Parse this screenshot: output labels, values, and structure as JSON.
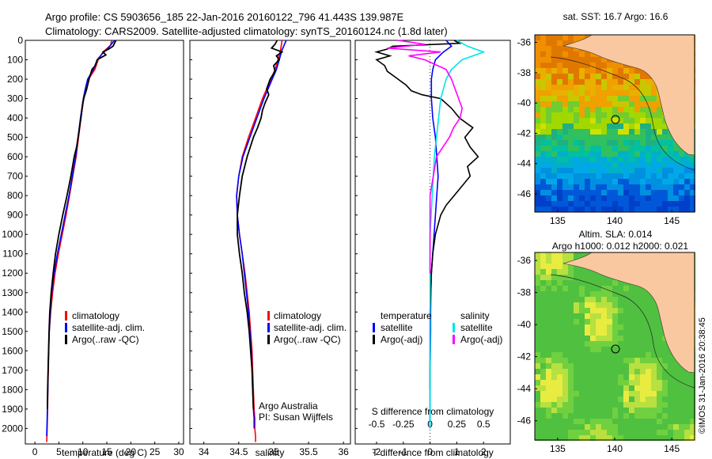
{
  "header": {
    "line1": "Argo profile: CS 5903656_185 22-Jan-2016 20160122_796 41.443S 139.987E",
    "line2": "Climatology: CARS2009. Satellite-adjusted climatology: synTS_20160124.nc (1.8d later)"
  },
  "colors": {
    "climatology": "#ff0000",
    "satellite": "#0000ff",
    "argo": "#000000",
    "sat_salinity": "#00e5e5",
    "argo_salinity": "#ff00ff"
  },
  "chart_data": [
    {
      "type": "line",
      "id": "temperature",
      "xlabel": "temperature (deg C)",
      "ylabel": "",
      "xlim": [
        -2,
        31
      ],
      "ylim": [
        2080,
        0
      ],
      "xticks": [
        "0",
        "5",
        "10",
        "15",
        "20",
        "25",
        "30"
      ],
      "yticks": [
        "0",
        "100",
        "200",
        "300",
        "400",
        "500",
        "600",
        "700",
        "800",
        "900",
        "1000",
        "1100",
        "1200",
        "1300",
        "1400",
        "1500",
        "1600",
        "1700",
        "1800",
        "1900",
        "2000"
      ],
      "legend": {
        "position": "lower-right",
        "items": [
          "climatology",
          "satellite-adj. clim.",
          "Argo(..raw -QC)"
        ]
      },
      "series": [
        {
          "name": "climatology",
          "x": [
            16.0,
            15.8,
            14.2,
            13.2,
            12.5,
            11.2,
            10.6,
            10.2,
            9.6,
            9.1,
            8.6,
            7.9,
            7.2,
            6.5,
            5.7,
            4.9,
            4.2,
            3.7,
            3.3,
            3.0,
            2.9,
            2.8,
            2.7,
            2.65,
            2.6,
            2.55,
            2.5,
            2.45
          ],
          "y": [
            0,
            25,
            60,
            100,
            150,
            200,
            250,
            300,
            400,
            500,
            600,
            700,
            800,
            900,
            1000,
            1100,
            1200,
            1300,
            1400,
            1500,
            1600,
            1700,
            1800,
            1900,
            1950,
            2000,
            2040,
            2070
          ]
        },
        {
          "name": "satellite-adj. clim.",
          "x": [
            16.6,
            15.3,
            14.0,
            13.0,
            12.2,
            11.0,
            10.5,
            10.1,
            9.5,
            9.0,
            8.5,
            7.8,
            7.1,
            6.3,
            5.5,
            4.7,
            4.0,
            3.5,
            3.2,
            3.0,
            2.85,
            2.75,
            2.7,
            2.6,
            2.55,
            2.5,
            2.45
          ],
          "y": [
            0,
            40,
            70,
            100,
            150,
            200,
            250,
            300,
            400,
            500,
            600,
            700,
            800,
            900,
            1000,
            1100,
            1200,
            1300,
            1400,
            1500,
            1600,
            1700,
            1800,
            1900,
            1950,
            2000,
            2040
          ]
        },
        {
          "name": "Argo(..raw -QC)",
          "x": [
            16.9,
            16.6,
            16.3,
            15.4,
            14.2,
            14.8,
            13.0,
            12.6,
            11.9,
            11.3,
            11.0,
            10.7,
            10.3,
            10.0,
            9.8,
            9.6,
            9.3,
            9.0,
            8.7,
            8.2,
            7.5,
            6.7,
            5.8,
            5.0,
            4.3,
            3.8,
            3.4,
            3.1,
            2.95,
            2.85,
            2.75,
            2.65,
            2.6
          ],
          "y": [
            0,
            15,
            30,
            45,
            60,
            75,
            100,
            130,
            150,
            200,
            230,
            260,
            290,
            320,
            360,
            400,
            450,
            500,
            550,
            600,
            700,
            800,
            900,
            1000,
            1100,
            1200,
            1300,
            1400,
            1500,
            1600,
            1700,
            1800,
            1900
          ]
        }
      ]
    },
    {
      "type": "line",
      "id": "salinity",
      "xlabel": "salinity",
      "ylabel": "",
      "xlim": [
        33.8,
        36.1
      ],
      "ylim": [
        2080,
        0
      ],
      "xticks": [
        "34",
        "34.5",
        "35",
        "35.5",
        "36"
      ],
      "legend": {
        "position": "lower-right",
        "items": [
          "climatology",
          "satellite-adj. clim.",
          "Argo(..raw -QC)"
        ]
      },
      "annotation": [
        "Argo Australia",
        "PI: Susan Wijffels"
      ],
      "series": [
        {
          "name": "climatology",
          "x": [
            35.12,
            35.1,
            35.06,
            35.02,
            34.96,
            34.9,
            34.84,
            34.74,
            34.64,
            34.55,
            34.5,
            34.47,
            34.48,
            34.51,
            34.55,
            34.59,
            34.62,
            34.65,
            34.67,
            34.69,
            34.7,
            34.71,
            34.72,
            34.73,
            34.73,
            34.74,
            34.74
          ],
          "y": [
            0,
            50,
            100,
            150,
            200,
            250,
            300,
            400,
            500,
            600,
            700,
            800,
            900,
            1000,
            1100,
            1200,
            1300,
            1400,
            1500,
            1600,
            1700,
            1800,
            1900,
            1950,
            2000,
            2040,
            2070
          ]
        },
        {
          "name": "satellite-adj. clim.",
          "x": [
            35.18,
            35.12,
            35.08,
            35.04,
            34.98,
            34.92,
            34.86,
            34.76,
            34.66,
            34.56,
            34.5,
            34.47,
            34.48,
            34.51,
            34.55,
            34.58,
            34.61,
            34.64,
            34.66,
            34.68,
            34.69,
            34.7,
            34.71,
            34.72,
            34.72
          ],
          "y": [
            0,
            50,
            100,
            150,
            200,
            250,
            300,
            400,
            500,
            600,
            700,
            800,
            900,
            1000,
            1100,
            1200,
            1300,
            1400,
            1500,
            1600,
            1700,
            1800,
            1900,
            1950,
            2000
          ]
        },
        {
          "name": "Argo(..raw -QC)",
          "x": [
            35.05,
            35.02,
            34.97,
            35.12,
            35.04,
            35.08,
            35.0,
            35.02,
            34.95,
            34.9,
            34.93,
            34.88,
            34.84,
            34.82,
            34.77,
            34.71,
            34.62,
            34.55,
            34.51,
            34.48,
            34.48,
            34.51,
            34.55,
            34.58,
            34.62,
            34.65,
            34.67,
            34.69,
            34.7,
            34.71
          ],
          "y": [
            0,
            20,
            40,
            60,
            80,
            100,
            130,
            160,
            200,
            250,
            280,
            320,
            360,
            400,
            450,
            500,
            600,
            700,
            800,
            900,
            1000,
            1100,
            1200,
            1300,
            1400,
            1500,
            1600,
            1700,
            1800,
            1900
          ]
        }
      ]
    },
    {
      "type": "line",
      "id": "differences",
      "xlabel": "T difference from climatology",
      "xlabel_top": "S difference from climatology",
      "xlim": [
        -2.8,
        3.0
      ],
      "ylim": [
        2080,
        0
      ],
      "xticks": [
        "-2",
        "-1",
        "0",
        "1",
        "2"
      ],
      "sticks": [
        "-0.5",
        "-0.25",
        "0",
        "0.25",
        "0.5"
      ],
      "legend": {
        "position": "lower",
        "groups": [
          {
            "title": "temperature",
            "items": [
              "satellite",
              "Argo(-adj)"
            ]
          },
          {
            "title": "salinity",
            "items": [
              "satellite",
              "Argo(-adj)"
            ]
          }
        ]
      },
      "series": [
        {
          "name": "satellite",
          "group": "temperature",
          "x": [
            0.6,
            0.8,
            0.5,
            0.2,
            0.1,
            0.05,
            0.05,
            0.1,
            0.2,
            0.25,
            0.3,
            0.25,
            0.2,
            0.15,
            0.1,
            0.05,
            0.03,
            0.02,
            0.02,
            0.01,
            0.0,
            0.0,
            0.0,
            0.0
          ],
          "y": [
            0,
            30,
            60,
            100,
            150,
            200,
            300,
            400,
            500,
            600,
            700,
            800,
            900,
            1000,
            1100,
            1200,
            1300,
            1400,
            1500,
            1600,
            1700,
            1800,
            1900,
            2000
          ]
        },
        {
          "name": "Argo(-adj)",
          "group": "temperature",
          "x": [
            0.9,
            1.1,
            -1.4,
            -1.6,
            -2.0,
            -1.5,
            -2.0,
            -1.7,
            -1.6,
            -1.2,
            -0.9,
            -0.7,
            -0.3,
            0.4,
            0.8,
            1.1,
            1.6,
            1.3,
            1.5,
            1.8,
            1.4,
            1.5,
            1.2,
            0.9,
            0.6,
            0.4,
            0.2,
            0.1,
            0.05,
            0.0,
            0.0,
            0.0
          ],
          "y": [
            0,
            15,
            30,
            45,
            60,
            80,
            100,
            130,
            160,
            200,
            230,
            260,
            280,
            300,
            350,
            400,
            450,
            500,
            550,
            600,
            650,
            700,
            750,
            800,
            850,
            900,
            1000,
            1100,
            1200,
            1400,
            1600,
            1800
          ]
        },
        {
          "name": "satellite",
          "group": "salinity",
          "x": [
            0.25,
            0.35,
            0.5,
            0.3,
            0.2,
            0.15,
            0.1,
            0.08,
            0.06,
            0.04,
            0.03,
            0.02,
            0.01,
            0.0,
            0.0,
            0.0
          ],
          "y": [
            0,
            30,
            60,
            100,
            150,
            200,
            300,
            400,
            500,
            600,
            700,
            800,
            900,
            1000,
            1500,
            2000
          ]
        },
        {
          "name": "Argo(-adj)",
          "group": "salinity",
          "x": [
            -0.3,
            -0.05,
            -0.4,
            0.1,
            -0.2,
            -0.05,
            0.15,
            0.2,
            0.3,
            0.28,
            0.22,
            0.18,
            0.12,
            0.06,
            0.03,
            0.0,
            0.0,
            0.0
          ],
          "y": [
            0,
            20,
            40,
            60,
            80,
            100,
            150,
            200,
            350,
            400,
            450,
            500,
            550,
            600,
            700,
            800,
            1000,
            1200
          ]
        }
      ]
    },
    {
      "type": "heatmap",
      "id": "sst_map",
      "title": "sat. SST: 16.7  Argo: 16.6",
      "xticks": [
        "135",
        "140",
        "145"
      ],
      "yticks": [
        "-36",
        "-38",
        "-40",
        "-42",
        "-44",
        "-46"
      ],
      "xlim": [
        133,
        147
      ],
      "ylim": [
        -47.2,
        -35.5
      ],
      "marker": {
        "lon": 139.987,
        "lat": -41.443
      }
    },
    {
      "type": "heatmap",
      "id": "sla_map",
      "title": "Altim. SLA: 0.014",
      "subtitle": "Argo h1000: 0.012 h2000: 0.021",
      "xticks": [
        "135",
        "140",
        "145"
      ],
      "yticks": [
        "-36",
        "-38",
        "-40",
        "-42",
        "-44",
        "-46"
      ],
      "xlim": [
        133,
        147
      ],
      "ylim": [
        -47.2,
        -35.5
      ],
      "marker": {
        "lon": 139.987,
        "lat": -41.443
      }
    }
  ],
  "credit": "©IMOS 31-Jan-2016 20:38:45"
}
